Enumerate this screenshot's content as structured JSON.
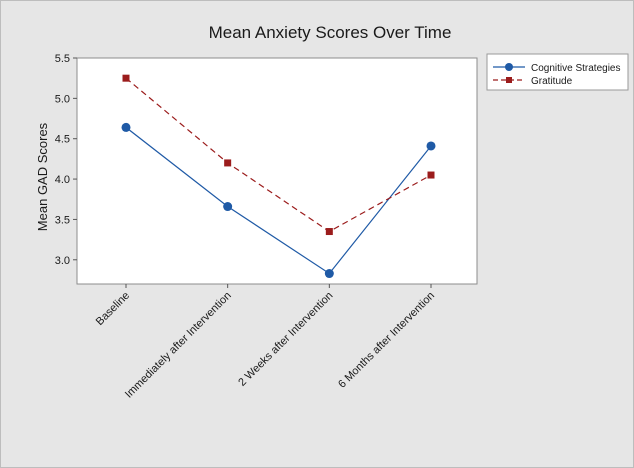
{
  "chart_data": {
    "type": "line",
    "title": "Mean Anxiety Scores Over Time",
    "xlabel": "",
    "ylabel": "Mean GAD Scores",
    "categories": [
      "Baseline",
      "Immediately after Intervention",
      "2 Weeks after Intervention",
      "6 Months after Intervention"
    ],
    "ylim": [
      2.7,
      5.5
    ],
    "yticks": [
      "3.0",
      "3.5",
      "4.0",
      "4.5",
      "5.0",
      "5.5"
    ],
    "grid": false,
    "legend_position": "top-right, outside plot",
    "series": [
      {
        "name": "Cognitive Strategies",
        "values": [
          4.64,
          3.66,
          2.83,
          4.41
        ],
        "color": "#1f5aa6",
        "marker": "circle",
        "line_style": "solid"
      },
      {
        "name": "Gratitude",
        "values": [
          5.25,
          4.2,
          3.35,
          4.05
        ],
        "color": "#9b1c1c",
        "marker": "square",
        "line_style": "dashed"
      }
    ]
  }
}
